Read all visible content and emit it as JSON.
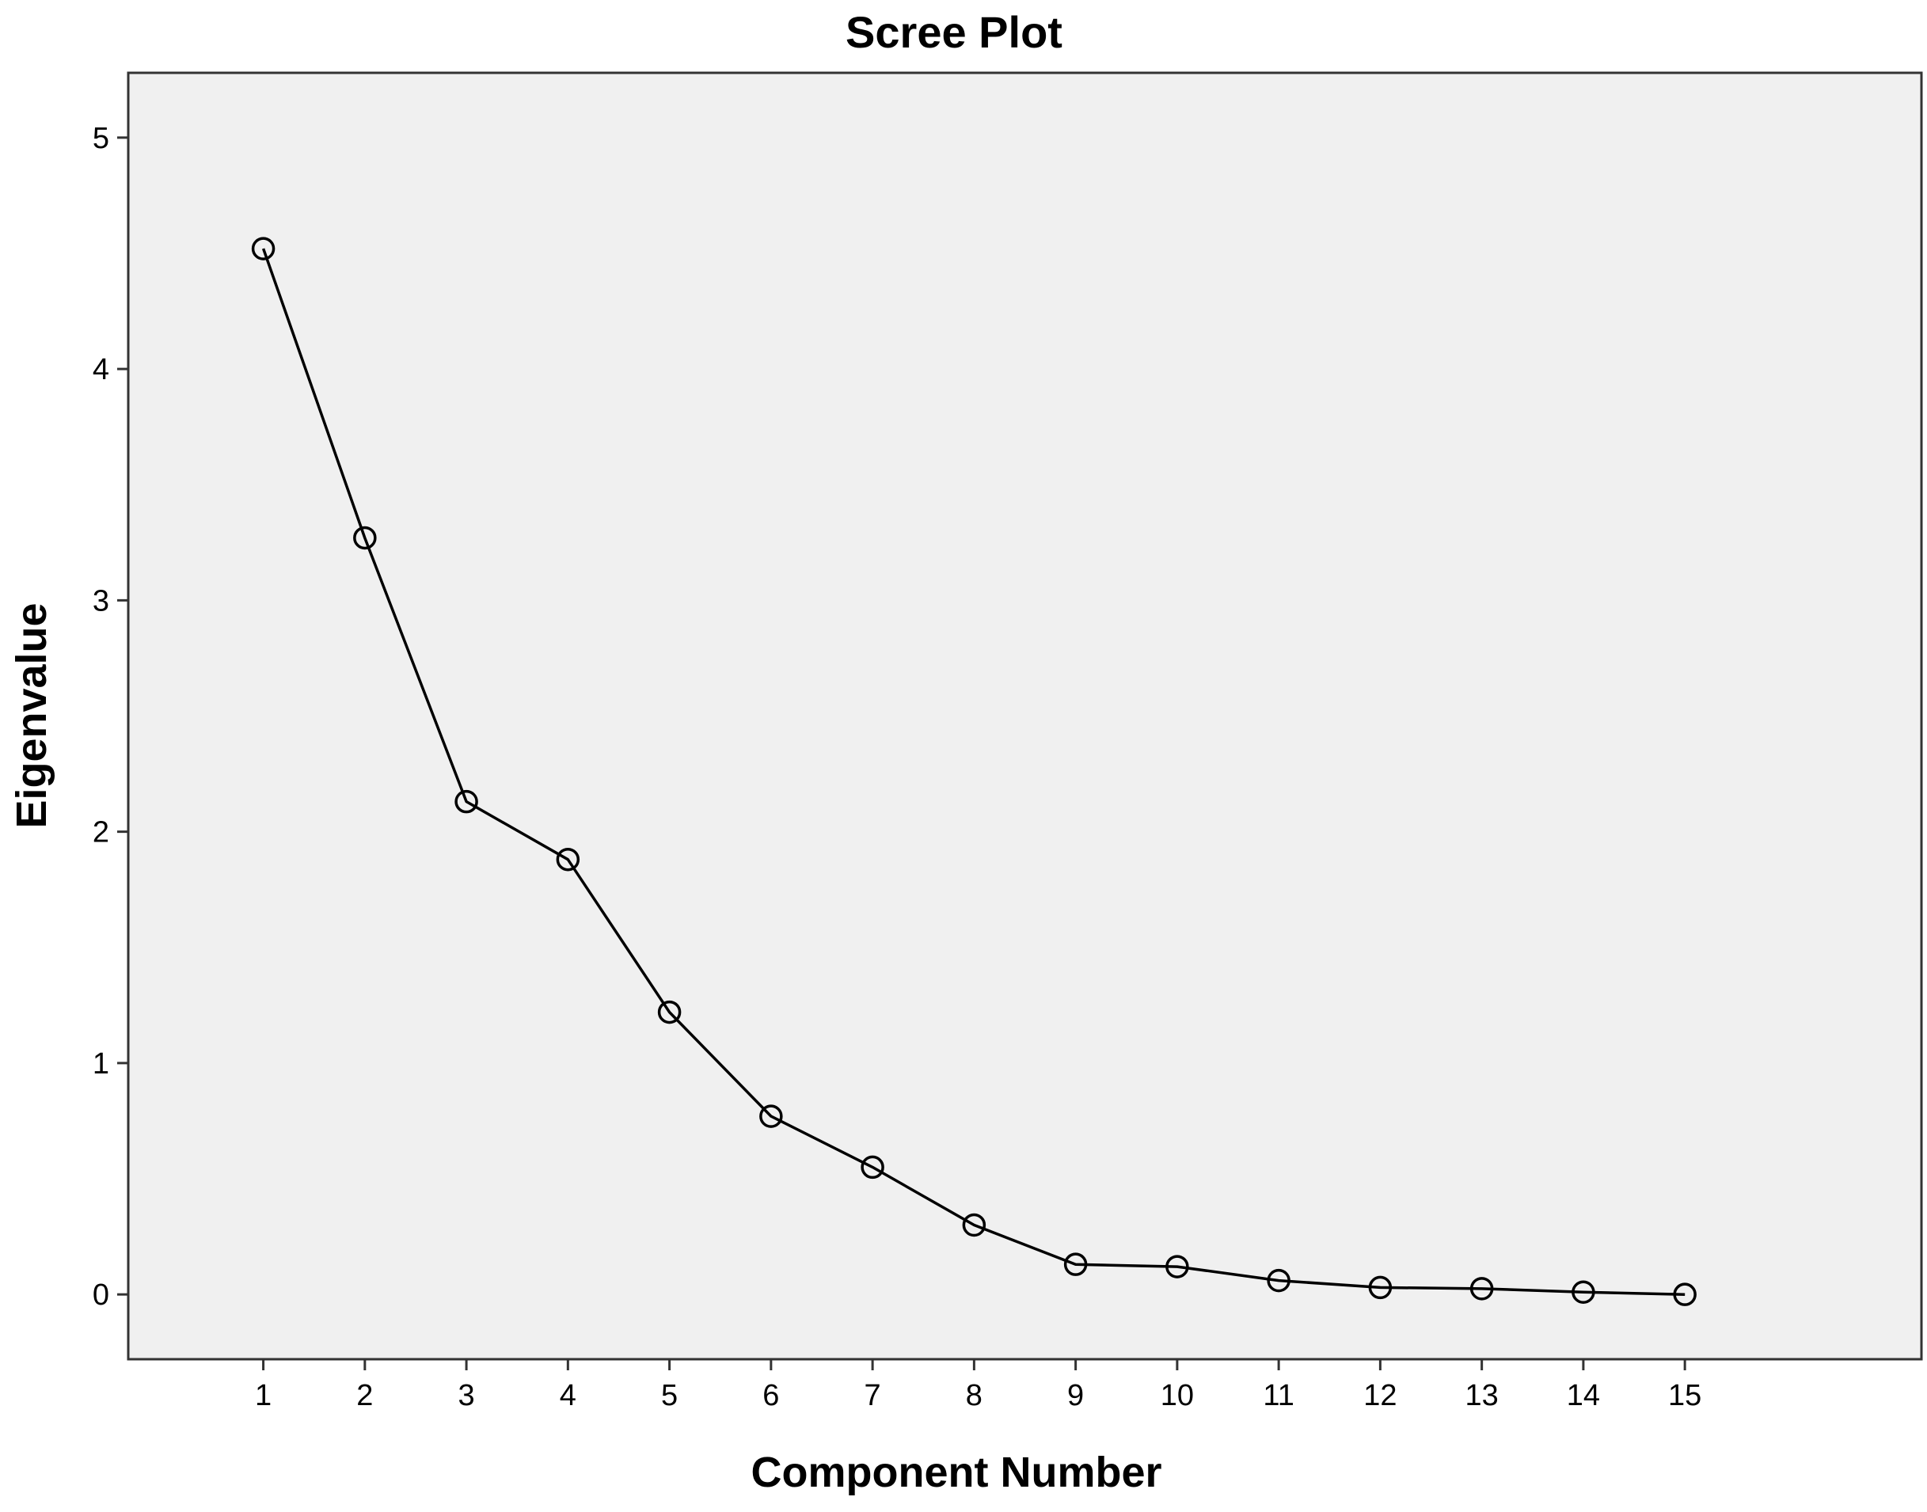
{
  "chart_data": {
    "type": "line",
    "title": "Scree Plot",
    "xlabel": "Component Number",
    "ylabel": "Eigenvalue",
    "x": [
      1,
      2,
      3,
      4,
      5,
      6,
      7,
      8,
      9,
      10,
      11,
      12,
      13,
      14,
      15
    ],
    "x_tick_labels": [
      "1",
      "2",
      "3",
      "4",
      "5",
      "6",
      "7",
      "8",
      "9",
      "10",
      "11",
      "12",
      "13",
      "14",
      "15"
    ],
    "y_tick_labels": [
      "0",
      "1",
      "2",
      "3",
      "4",
      "5"
    ],
    "y_ticks": [
      0,
      1,
      2,
      3,
      4,
      5
    ],
    "xlim": [
      -0.33,
      17.33
    ],
    "ylim": [
      -0.28,
      5.28
    ],
    "series": [
      {
        "values": [
          4.52,
          3.27,
          2.13,
          1.88,
          1.22,
          0.77,
          0.55,
          0.3,
          0.13,
          0.12,
          0.06,
          0.03,
          0.025,
          0.01,
          0.0
        ],
        "marker": "open-circle",
        "color": "#000000"
      }
    ],
    "plot_background": "#f0f0f0",
    "grid": false,
    "legend": "none"
  }
}
